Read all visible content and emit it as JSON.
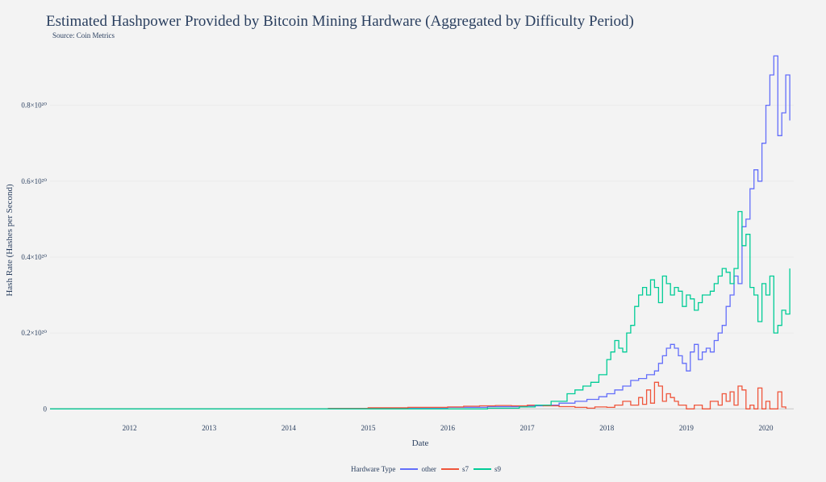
{
  "title": "Estimated Hashpower Provided by Bitcoin Mining Hardware  (Aggregated by Difficulty Period)",
  "subtitle": "Source: Coin Metrics",
  "legend": {
    "title": "Hardware Type"
  },
  "chart_data": {
    "type": "line",
    "line_shape": "step",
    "title": "Estimated Hashpower Provided by Bitcoin Mining Hardware  (Aggregated by Difficulty Period)",
    "xlabel": "Date",
    "ylabel": "Hash Rate (Hashes per Second)",
    "xlim": [
      2011.0,
      2020.35
    ],
    "ylim": [
      -0.01,
      0.95
    ],
    "y_unit": "1e20 hashes per second",
    "x_ticks": [
      2012,
      2013,
      2014,
      2015,
      2016,
      2017,
      2018,
      2019,
      2020
    ],
    "x_tick_labels": [
      "2012",
      "2013",
      "2014",
      "2015",
      "2016",
      "2017",
      "2018",
      "2019",
      "2020"
    ],
    "y_ticks": [
      0,
      0.2,
      0.4,
      0.6,
      0.8
    ],
    "y_tick_labels": [
      "0",
      "0.2×10²⁰",
      "0.4×10²⁰",
      "0.6×10²⁰",
      "0.8×10²⁰"
    ],
    "grid": true,
    "legend_position": "bottom",
    "series": [
      {
        "name": "other",
        "color": "#636efa",
        "x": [
          2011.0,
          2014.0,
          2014.5,
          2015.0,
          2015.5,
          2016.0,
          2016.5,
          2017.0,
          2017.2,
          2017.4,
          2017.6,
          2017.75,
          2017.9,
          2018.0,
          2018.1,
          2018.2,
          2018.3,
          2018.4,
          2018.5,
          2018.6,
          2018.65,
          2018.7,
          2018.75,
          2018.8,
          2018.85,
          2018.9,
          2018.95,
          2019.0,
          2019.05,
          2019.1,
          2019.15,
          2019.2,
          2019.25,
          2019.3,
          2019.35,
          2019.4,
          2019.45,
          2019.5,
          2019.55,
          2019.6,
          2019.65,
          2019.7,
          2019.75,
          2019.8,
          2019.85,
          2019.9,
          2019.95,
          2020.0,
          2020.05,
          2020.1,
          2020.15,
          2020.2,
          2020.25,
          2020.3
        ],
        "y": [
          0.0,
          0.0,
          0.001,
          0.002,
          0.003,
          0.004,
          0.006,
          0.008,
          0.01,
          0.015,
          0.02,
          0.025,
          0.032,
          0.04,
          0.05,
          0.06,
          0.075,
          0.08,
          0.09,
          0.1,
          0.12,
          0.14,
          0.16,
          0.17,
          0.16,
          0.14,
          0.12,
          0.1,
          0.15,
          0.17,
          0.13,
          0.15,
          0.16,
          0.15,
          0.18,
          0.2,
          0.22,
          0.27,
          0.3,
          0.35,
          0.33,
          0.48,
          0.5,
          0.58,
          0.63,
          0.6,
          0.7,
          0.8,
          0.88,
          0.93,
          0.72,
          0.78,
          0.88,
          0.76
        ]
      },
      {
        "name": "s7",
        "color": "#ef553b",
        "x": [
          2011.0,
          2014.5,
          2015.0,
          2015.5,
          2016.0,
          2016.2,
          2016.4,
          2016.6,
          2016.8,
          2017.0,
          2017.2,
          2017.4,
          2017.6,
          2017.75,
          2017.85,
          2018.0,
          2018.1,
          2018.2,
          2018.3,
          2018.4,
          2018.45,
          2018.5,
          2018.55,
          2018.6,
          2018.65,
          2018.7,
          2018.75,
          2018.8,
          2018.85,
          2018.9,
          2019.0,
          2019.1,
          2019.2,
          2019.3,
          2019.4,
          2019.45,
          2019.5,
          2019.55,
          2019.6,
          2019.65,
          2019.7,
          2019.75,
          2019.8,
          2019.85,
          2019.9,
          2019.95,
          2020.0,
          2020.05,
          2020.1,
          2020.15,
          2020.2,
          2020.25
        ],
        "y": [
          0.0,
          0.001,
          0.003,
          0.004,
          0.005,
          0.007,
          0.008,
          0.009,
          0.008,
          0.01,
          0.008,
          0.006,
          0.004,
          0.002,
          0.005,
          0.004,
          0.01,
          0.02,
          0.01,
          0.03,
          0.012,
          0.05,
          0.015,
          0.07,
          0.06,
          0.02,
          0.04,
          0.03,
          0.02,
          0.01,
          0.0,
          0.01,
          0.0,
          0.02,
          0.01,
          0.04,
          0.02,
          0.045,
          0.01,
          0.06,
          0.05,
          0.0,
          0.01,
          0.0,
          0.055,
          0.0,
          0.02,
          0.0,
          0.0,
          0.045,
          0.005,
          0.0
        ]
      },
      {
        "name": "s9",
        "color": "#00cc96",
        "x": [
          2011.0,
          2016.0,
          2016.5,
          2016.9,
          2017.1,
          2017.3,
          2017.5,
          2017.6,
          2017.7,
          2017.8,
          2017.9,
          2018.0,
          2018.05,
          2018.1,
          2018.15,
          2018.2,
          2018.25,
          2018.3,
          2018.35,
          2018.4,
          2018.45,
          2018.5,
          2018.55,
          2018.6,
          2018.65,
          2018.7,
          2018.75,
          2018.8,
          2018.85,
          2018.9,
          2018.95,
          2019.0,
          2019.05,
          2019.1,
          2019.15,
          2019.2,
          2019.3,
          2019.35,
          2019.4,
          2019.45,
          2019.5,
          2019.55,
          2019.6,
          2019.65,
          2019.7,
          2019.75,
          2019.8,
          2019.85,
          2019.9,
          2019.95,
          2020.0,
          2020.05,
          2020.1,
          2020.15,
          2020.2,
          2020.25,
          2020.3
        ],
        "y": [
          0.0,
          0.0,
          0.002,
          0.005,
          0.01,
          0.02,
          0.04,
          0.05,
          0.06,
          0.07,
          0.09,
          0.13,
          0.15,
          0.18,
          0.16,
          0.15,
          0.2,
          0.22,
          0.27,
          0.3,
          0.32,
          0.3,
          0.34,
          0.32,
          0.28,
          0.35,
          0.33,
          0.3,
          0.32,
          0.31,
          0.27,
          0.3,
          0.29,
          0.26,
          0.28,
          0.3,
          0.31,
          0.33,
          0.35,
          0.37,
          0.36,
          0.33,
          0.37,
          0.52,
          0.43,
          0.46,
          0.32,
          0.3,
          0.23,
          0.33,
          0.3,
          0.35,
          0.2,
          0.22,
          0.26,
          0.25,
          0.37
        ]
      }
    ]
  }
}
